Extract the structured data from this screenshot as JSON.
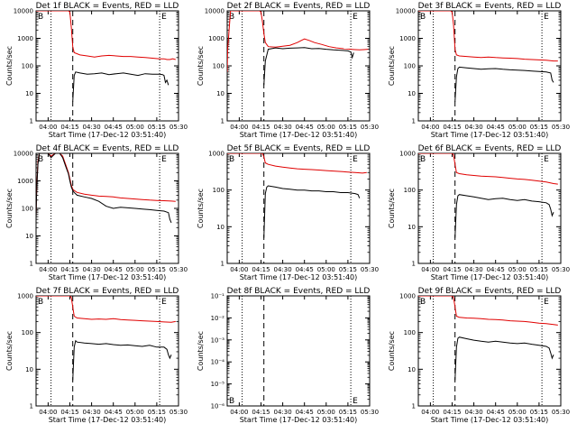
{
  "xlabel": "Start Time (17-Dec-12 03:51:40)",
  "ylabel": "Counts/sec",
  "x_ticks": [
    "04:00",
    "04:15",
    "04:30",
    "04:45",
    "05:00",
    "05:15",
    "05:30"
  ],
  "x_tick_minutes": [
    0,
    15,
    30,
    45,
    60,
    75,
    90
  ],
  "x_range_minutes": [
    -8.33,
    90
  ],
  "markers": {
    "vlines_dotted_minutes": [
      2,
      77
    ],
    "vline_dashed_minutes": 17,
    "B_label": "B",
    "E_label": "E"
  },
  "colors": {
    "events": "#000000",
    "lld": "#e00000"
  },
  "panels": [
    {
      "title": "Det 1f BLACK = Events, RED = LLD",
      "y_ticks": [
        "1",
        "10",
        "100",
        "1000",
        "10000"
      ],
      "y_tick_exps": [
        0,
        1,
        2,
        3,
        4
      ],
      "y_range_exp": [
        0,
        4
      ]
    },
    {
      "title": "Det 2f BLACK = Events, RED = LLD",
      "y_ticks": [
        "1",
        "10",
        "100",
        "1000",
        "10000"
      ],
      "y_tick_exps": [
        0,
        1,
        2,
        3,
        4
      ],
      "y_range_exp": [
        0,
        4
      ]
    },
    {
      "title": "Det 3f BLACK = Events, RED = LLD",
      "y_ticks": [
        "1",
        "10",
        "100",
        "1000",
        "10000"
      ],
      "y_tick_exps": [
        0,
        1,
        2,
        3,
        4
      ],
      "y_range_exp": [
        0,
        4
      ]
    },
    {
      "title": "Det 4f BLACK = Events, RED = LLD",
      "y_ticks": [
        "1",
        "10",
        "100",
        "1000",
        "10000"
      ],
      "y_tick_exps": [
        0,
        1,
        2,
        3,
        4
      ],
      "y_range_exp": [
        0,
        4
      ]
    },
    {
      "title": "Det 5f BLACK = Events, RED = LLD",
      "y_ticks": [
        "1",
        "10",
        "100",
        "1000"
      ],
      "y_tick_exps": [
        0,
        1,
        2,
        3
      ],
      "y_range_exp": [
        0,
        3
      ]
    },
    {
      "title": "Det 6f BLACK = Events, RED = LLD",
      "y_ticks": [
        "1",
        "10",
        "100",
        "1000"
      ],
      "y_tick_exps": [
        0,
        1,
        2,
        3
      ],
      "y_range_exp": [
        0,
        3
      ]
    },
    {
      "title": "Det 7f BLACK = Events, RED = LLD",
      "y_ticks": [
        "1",
        "10",
        "100",
        "1000"
      ],
      "y_tick_exps": [
        0,
        1,
        2,
        3
      ],
      "y_range_exp": [
        0,
        3
      ]
    },
    {
      "title": "Det 8f BLACK = Events, RED = LLD",
      "y_ticks": [
        "10⁻¹",
        "10⁻²",
        "10⁻³",
        "10⁻⁴",
        "10⁻⁵",
        "10⁻⁶"
      ],
      "y_tick_exps": [
        -1,
        -2,
        -3,
        -4,
        -5,
        -6
      ],
      "y_range_exp": [
        -6,
        -1
      ]
    },
    {
      "title": "Det 9f BLACK = Events, RED = LLD",
      "y_ticks": [
        "1",
        "10",
        "100",
        "1000"
      ],
      "y_tick_exps": [
        0,
        1,
        2,
        3
      ],
      "y_range_exp": [
        0,
        3
      ]
    }
  ],
  "chart_data": [
    {
      "type": "line",
      "title": "Det 1f BLACK = Events, RED = LLD",
      "xlabel": "Start Time (17-Dec-12 03:51:40)",
      "ylabel": "Counts/sec",
      "yscale": "log",
      "xlim_minutes": [
        -8.33,
        90
      ],
      "ylim": [
        1,
        10000
      ],
      "series": [
        {
          "x": [
            -8.3,
            -6,
            -3,
            0,
            3,
            6,
            9,
            12,
            14,
            15,
            16,
            17,
            18,
            22,
            27,
            32,
            37,
            42,
            47,
            52,
            57,
            62,
            67,
            72,
            77,
            80,
            82,
            84,
            86,
            88
          ],
          "values": [
            10000,
            10000,
            10000,
            10000,
            10000,
            10000,
            10000,
            10000,
            10000,
            9000,
            2500,
            500,
            300,
            250,
            230,
            210,
            230,
            240,
            230,
            220,
            220,
            210,
            200,
            190,
            180,
            180,
            170,
            170,
            180,
            170
          ]
        },
        {
          "x": [
            17,
            18,
            19,
            22,
            27,
            32,
            37,
            42,
            47,
            52,
            57,
            62,
            67,
            72,
            77,
            79,
            80,
            81,
            82,
            83
          ],
          "values": [
            5,
            45,
            60,
            55,
            50,
            52,
            55,
            48,
            52,
            55,
            50,
            45,
            52,
            50,
            50,
            48,
            45,
            25,
            30,
            20
          ]
        }
      ]
    },
    {
      "type": "line",
      "title": "Det 2f BLACK = Events, RED = LLD",
      "xlabel": "Start Time (17-Dec-12 03:51:40)",
      "ylabel": "Counts/sec",
      "yscale": "log",
      "xlim_minutes": [
        -8.33,
        90
      ],
      "ylim": [
        1,
        10000
      ],
      "series": [
        {
          "x": [
            -8.3,
            -8,
            -7,
            -6,
            -5,
            0,
            5,
            10,
            12,
            14,
            15,
            16,
            17,
            18,
            20,
            25,
            30,
            35,
            40,
            43,
            45,
            48,
            52,
            57,
            62,
            67,
            72,
            77,
            80,
            83,
            86,
            89
          ],
          "values": [
            60,
            400,
            2000,
            10000,
            10000,
            10000,
            10000,
            10000,
            10000,
            10000,
            9000,
            4000,
            1500,
            700,
            500,
            480,
            520,
            560,
            700,
            850,
            950,
            850,
            700,
            600,
            500,
            450,
            420,
            400,
            390,
            380,
            390,
            400
          ]
        },
        {
          "x": [
            17,
            18,
            20,
            25,
            30,
            35,
            40,
            45,
            50,
            55,
            60,
            65,
            70,
            75,
            77,
            78,
            79
          ],
          "values": [
            20,
            150,
            400,
            450,
            420,
            440,
            450,
            460,
            420,
            430,
            400,
            380,
            370,
            350,
            320,
            200,
            300
          ]
        }
      ]
    },
    {
      "type": "line",
      "title": "Det 3f BLACK = Events, RED = LLD",
      "xlabel": "Start Time (17-Dec-12 03:51:40)",
      "ylabel": "Counts/sec",
      "yscale": "log",
      "xlim_minutes": [
        -8.33,
        90
      ],
      "ylim": [
        1,
        10000
      ],
      "series": [
        {
          "x": [
            -8.3,
            -5,
            0,
            5,
            10,
            14,
            15,
            16,
            17,
            18,
            20,
            25,
            30,
            35,
            40,
            45,
            50,
            55,
            60,
            65,
            70,
            75,
            80,
            85,
            88
          ],
          "values": [
            10000,
            10000,
            10000,
            10000,
            10000,
            10000,
            9000,
            3000,
            400,
            250,
            230,
            220,
            210,
            200,
            210,
            200,
            195,
            190,
            185,
            175,
            170,
            165,
            160,
            150,
            150
          ]
        },
        {
          "x": [
            17,
            18,
            19,
            20,
            25,
            30,
            35,
            40,
            45,
            50,
            55,
            60,
            65,
            70,
            75,
            80,
            83,
            84,
            85
          ],
          "values": [
            5,
            40,
            80,
            90,
            85,
            80,
            75,
            78,
            80,
            75,
            72,
            70,
            68,
            65,
            62,
            60,
            55,
            30,
            25
          ]
        }
      ]
    },
    {
      "type": "line",
      "title": "Det 4f BLACK = Events, RED = LLD",
      "xlabel": "Start Time (17-Dec-12 03:51:40)",
      "ylabel": "Counts/sec",
      "yscale": "log",
      "xlim_minutes": [
        -8.33,
        90
      ],
      "ylim": [
        1,
        10000
      ],
      "series": [
        {
          "x": [
            -8.3,
            -8,
            -7.5,
            -7,
            -6,
            -4,
            -2,
            0,
            2,
            5,
            8,
            10,
            12,
            14,
            15,
            16,
            17,
            18,
            20,
            25,
            30,
            35,
            40,
            45,
            50,
            55,
            60,
            65,
            70,
            75,
            80,
            85,
            88
          ],
          "values": [
            50,
            300,
            1500,
            5000,
            10000,
            10000,
            10000,
            10000,
            8000,
            10000,
            10000,
            8000,
            4000,
            2000,
            1200,
            700,
            500,
            450,
            380,
            330,
            300,
            280,
            270,
            260,
            240,
            230,
            220,
            210,
            200,
            195,
            190,
            185,
            180
          ]
        },
        {
          "x": [
            -8.3,
            -8,
            -7.5,
            -7,
            -6,
            -4,
            -2,
            0,
            2,
            5,
            8,
            10,
            12,
            14,
            15,
            16,
            17,
            18,
            20,
            25,
            30,
            35,
            40,
            45,
            50,
            55,
            60,
            65,
            70,
            75,
            80,
            83,
            84,
            85
          ],
          "values": [
            40,
            250,
            1200,
            4000,
            10000,
            10000,
            10000,
            10000,
            7000,
            10000,
            10000,
            7000,
            3500,
            1800,
            1000,
            600,
            450,
            380,
            300,
            260,
            230,
            180,
            120,
            100,
            110,
            105,
            100,
            95,
            90,
            85,
            80,
            70,
            40,
            30
          ]
        }
      ]
    },
    {
      "type": "line",
      "title": "Det 5f BLACK = Events, RED = LLD",
      "xlabel": "Start Time (17-Dec-12 03:51:40)",
      "ylabel": "Counts/sec",
      "yscale": "log",
      "xlim_minutes": [
        -8.33,
        90
      ],
      "ylim": [
        1,
        1000
      ],
      "series": [
        {
          "x": [
            -8.3,
            0,
            10,
            14,
            15,
            16,
            17,
            18,
            20,
            25,
            30,
            35,
            40,
            45,
            50,
            55,
            60,
            65,
            70,
            75,
            80,
            85,
            88
          ],
          "values": [
            1000,
            1000,
            1000,
            1000,
            1000,
            1000,
            800,
            550,
            500,
            450,
            420,
            400,
            380,
            370,
            360,
            350,
            340,
            330,
            320,
            310,
            300,
            290,
            300
          ]
        },
        {
          "x": [
            17,
            18,
            19,
            20,
            25,
            30,
            35,
            40,
            45,
            50,
            55,
            60,
            65,
            70,
            75,
            80,
            82,
            83
          ],
          "values": [
            5,
            80,
            120,
            130,
            120,
            110,
            105,
            100,
            100,
            95,
            95,
            90,
            90,
            85,
            85,
            80,
            75,
            60
          ]
        }
      ]
    },
    {
      "type": "line",
      "title": "Det 6f BLACK = Events, RED = LLD",
      "xlabel": "Start Time (17-Dec-12 03:51:40)",
      "ylabel": "Counts/sec",
      "yscale": "log",
      "xlim_minutes": [
        -8.33,
        90
      ],
      "ylim": [
        1,
        1000
      ],
      "series": [
        {
          "x": [
            -8.3,
            0,
            10,
            14,
            15,
            16,
            17,
            18,
            20,
            25,
            30,
            35,
            40,
            45,
            50,
            55,
            60,
            65,
            70,
            75,
            80,
            85,
            88
          ],
          "values": [
            1000,
            1000,
            1000,
            1000,
            1000,
            900,
            500,
            300,
            280,
            260,
            250,
            240,
            235,
            230,
            220,
            210,
            200,
            195,
            185,
            175,
            165,
            150,
            145
          ]
        },
        {
          "x": [
            17,
            18,
            19,
            20,
            25,
            30,
            35,
            40,
            45,
            50,
            55,
            60,
            65,
            70,
            75,
            80,
            82,
            83,
            84,
            85
          ],
          "values": [
            5,
            40,
            70,
            75,
            70,
            65,
            60,
            55,
            58,
            60,
            55,
            52,
            55,
            50,
            48,
            45,
            40,
            30,
            20,
            25
          ]
        }
      ]
    },
    {
      "type": "line",
      "title": "Det 7f BLACK = Events, RED = LLD",
      "xlabel": "Start Time (17-Dec-12 03:51:40)",
      "ylabel": "Counts/sec",
      "yscale": "log",
      "xlim_minutes": [
        -8.33,
        90
      ],
      "ylim": [
        1,
        1000
      ],
      "series": [
        {
          "x": [
            -8.3,
            0,
            10,
            14,
            15,
            16,
            17,
            18,
            20,
            25,
            30,
            35,
            40,
            45,
            50,
            55,
            60,
            65,
            70,
            75,
            80,
            85,
            88
          ],
          "values": [
            1000,
            1000,
            1000,
            1000,
            1000,
            900,
            500,
            280,
            250,
            240,
            230,
            235,
            230,
            240,
            225,
            220,
            215,
            210,
            205,
            200,
            195,
            190,
            200
          ]
        },
        {
          "x": [
            17,
            18,
            19,
            20,
            25,
            30,
            35,
            40,
            45,
            50,
            55,
            60,
            65,
            70,
            75,
            80,
            82,
            83,
            84,
            85
          ],
          "values": [
            5,
            40,
            60,
            55,
            52,
            50,
            48,
            50,
            47,
            45,
            46,
            44,
            42,
            45,
            40,
            40,
            35,
            25,
            20,
            25
          ]
        }
      ]
    },
    {
      "type": "line",
      "title": "Det 8f BLACK = Events, RED = LLD",
      "xlabel": "Start Time (17-Dec-12 03:51:40)",
      "ylabel": "Counts/sec",
      "yscale": "log",
      "xlim_minutes": [
        -8.33,
        90
      ],
      "ylim": [
        1e-06,
        0.1
      ],
      "series": []
    },
    {
      "type": "line",
      "title": "Det 9f BLACK = Events, RED = LLD",
      "xlabel": "Start Time (17-Dec-12 03:51:40)",
      "ylabel": "Counts/sec",
      "yscale": "log",
      "xlim_minutes": [
        -8.33,
        90
      ],
      "ylim": [
        1,
        1000
      ],
      "series": [
        {
          "x": [
            -8.3,
            0,
            10,
            14,
            15,
            16,
            17,
            18,
            20,
            25,
            30,
            35,
            40,
            45,
            50,
            55,
            60,
            65,
            70,
            75,
            80,
            85,
            88
          ],
          "values": [
            1000,
            1000,
            1000,
            1000,
            1000,
            900,
            500,
            280,
            260,
            250,
            245,
            240,
            230,
            225,
            220,
            210,
            205,
            200,
            190,
            180,
            175,
            165,
            160
          ]
        },
        {
          "x": [
            17,
            18,
            19,
            20,
            25,
            30,
            35,
            40,
            45,
            50,
            55,
            60,
            65,
            70,
            75,
            80,
            82,
            83,
            84,
            85
          ],
          "values": [
            5,
            40,
            70,
            75,
            68,
            62,
            58,
            55,
            58,
            55,
            52,
            50,
            52,
            48,
            45,
            42,
            38,
            28,
            20,
            25
          ]
        }
      ]
    }
  ]
}
